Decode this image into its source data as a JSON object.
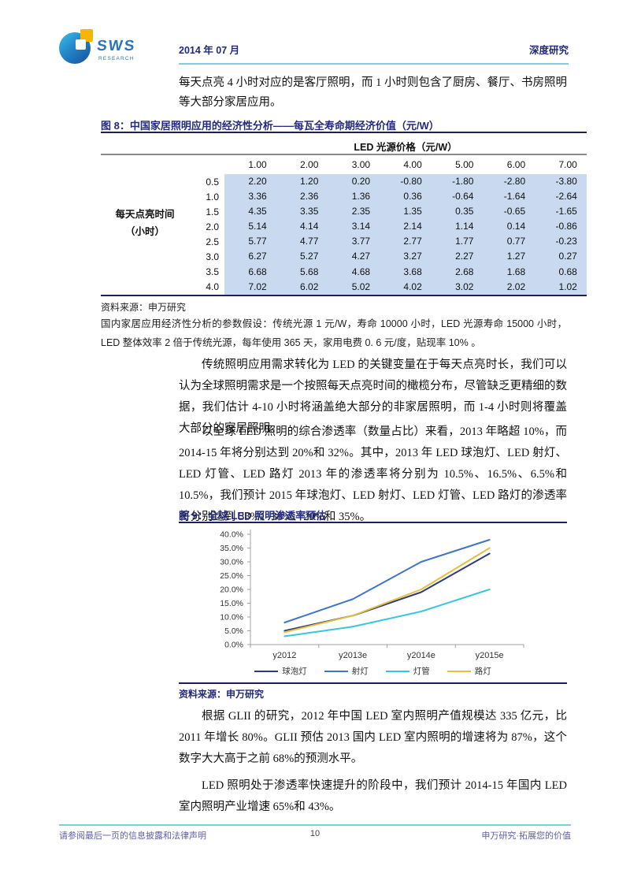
{
  "header": {
    "logo_text": "SWS",
    "logo_subtext": "RESEARCH",
    "date": "2014 年 07 月",
    "report_type": "深度研究"
  },
  "paragraphs": {
    "p1": "每天点亮 4 小时对应的是客厅照明，而 1 小时则包含了厨房、餐厅、书房照明等大部分家居应用。",
    "p2": "传统照明应用需求转化为 LED 的关键变量在于每天点亮时长，我们可以认为全球照明需求是一个按照每天点亮时间的橄榄分布，尽管缺乏更精细的数据，我们估计 4-10 小时将涵盖绝大部分的非家居照明，而 1-4 小时则将覆盖大部分的家居照明。",
    "p3": "以全球 LED 照明的综合渗透率（数量占比）来看，2013 年略超 10%，而 2014-15 年将分别达到 20%和 32%。其中，2013 年 LED 球泡灯、LED 射灯、LED 灯管、LED 路灯 2013 年的渗透率将分别为 10.5%、16.5%、6.5%和 10.5%，我们预计 2015 年球泡灯、LED 射灯、LED 灯管、LED 路灯的渗透率将分别达到 33%、38%、20%和 35%。",
    "p4": "根据 GLII 的研究，2012 年中国 LED 室内照明产值规模达 335 亿元，比 2011 年增长 80%。GLII 预估 2013 国内 LED 室内照明的增速将为 87%，这个数字大大高于之前 68%的预测水平。",
    "p5": "LED 照明处于渗透率快速提升的阶段中，我们预计 2014-15 年国内 LED 室内照明产业增速 65%和 43%。"
  },
  "table8": {
    "title": "图 8：中国家居照明应用的经济性分析——每瓦全寿命期经济价值（元/W）",
    "header": "LED 光源价格（元/W）",
    "row_label_line1": "每天点亮时间",
    "row_label_line2": "（小时）",
    "columns": [
      "1.00",
      "2.00",
      "3.00",
      "4.00",
      "5.00",
      "6.00",
      "7.00"
    ],
    "rows": [
      {
        "hours": "0.5",
        "values": [
          "2.20",
          "1.20",
          "0.20",
          "-0.80",
          "-1.80",
          "-2.80",
          "-3.80"
        ]
      },
      {
        "hours": "1.0",
        "values": [
          "3.36",
          "2.36",
          "1.36",
          "0.36",
          "-0.64",
          "-1.64",
          "-2.64"
        ]
      },
      {
        "hours": "1.5",
        "values": [
          "4.35",
          "3.35",
          "2.35",
          "1.35",
          "0.35",
          "-0.65",
          "-1.65"
        ]
      },
      {
        "hours": "2.0",
        "values": [
          "5.14",
          "4.14",
          "3.14",
          "2.14",
          "1.14",
          "0.14",
          "-0.86"
        ]
      },
      {
        "hours": "2.5",
        "values": [
          "5.77",
          "4.77",
          "3.77",
          "2.77",
          "1.77",
          "0.77",
          "-0.23"
        ]
      },
      {
        "hours": "3.0",
        "values": [
          "6.27",
          "5.27",
          "4.27",
          "3.27",
          "2.27",
          "1.27",
          "0.27"
        ]
      },
      {
        "hours": "3.5",
        "values": [
          "6.68",
          "5.68",
          "4.68",
          "3.68",
          "2.68",
          "1.68",
          "0.68"
        ]
      },
      {
        "hours": "4.0",
        "values": [
          "7.02",
          "6.02",
          "5.02",
          "4.02",
          "3.02",
          "2.02",
          "1.02"
        ]
      }
    ],
    "source": "资料来源：申万研究",
    "note": "国内家居应用经济性分析的参数假设：传统光源 1 元/W，寿命 10000 小时，LED 光源寿命 15000 小时，LED 整体效率 2 倍于传统光源，每年使用 365 天，家用电费 0. 6 元/度，贴现率 10% 。"
  },
  "figure9": {
    "title": "图 9：全球 LED 照明渗透率预估",
    "source": "资料来源：申万研究"
  },
  "chart_data": {
    "type": "line",
    "title": "全球 LED 照明渗透率预估",
    "x": [
      "y2012",
      "y2013e",
      "y2014e",
      "y2015e"
    ],
    "series": [
      {
        "name": "球泡灯",
        "color": "#2f3b7d",
        "values": [
          5.0,
          10.5,
          19.0,
          33.0
        ]
      },
      {
        "name": "射灯",
        "color": "#4176c4",
        "values": [
          8.0,
          16.5,
          30.0,
          38.0
        ]
      },
      {
        "name": "灯管",
        "color": "#38c6dc",
        "values": [
          3.0,
          6.5,
          12.0,
          20.0
        ]
      },
      {
        "name": "路灯",
        "color": "#e3c13f",
        "values": [
          4.5,
          10.5,
          20.0,
          35.0
        ]
      }
    ],
    "ylim": [
      0,
      40
    ],
    "ytick_step": 5,
    "ytick_format": "percent1",
    "xlabel": "",
    "ylabel": "",
    "grid": false,
    "legend_position": "bottom"
  },
  "footer": {
    "left": "请参阅最后一页的信息披露和法律声明",
    "page": "10",
    "right": "申万研究·拓展您的价值"
  },
  "colors": {
    "navy_title": "#232a7c",
    "rule_dark_navy": "#1f1f5c",
    "rule_cyan": "#7bcfe0",
    "table_cell_bg": "#c9daf0",
    "rule_gray": "#8c8c8c",
    "footer_text": "#5e5ea8",
    "logo_yellow": "#f7b400",
    "logo_blue": "#2b74b8"
  }
}
